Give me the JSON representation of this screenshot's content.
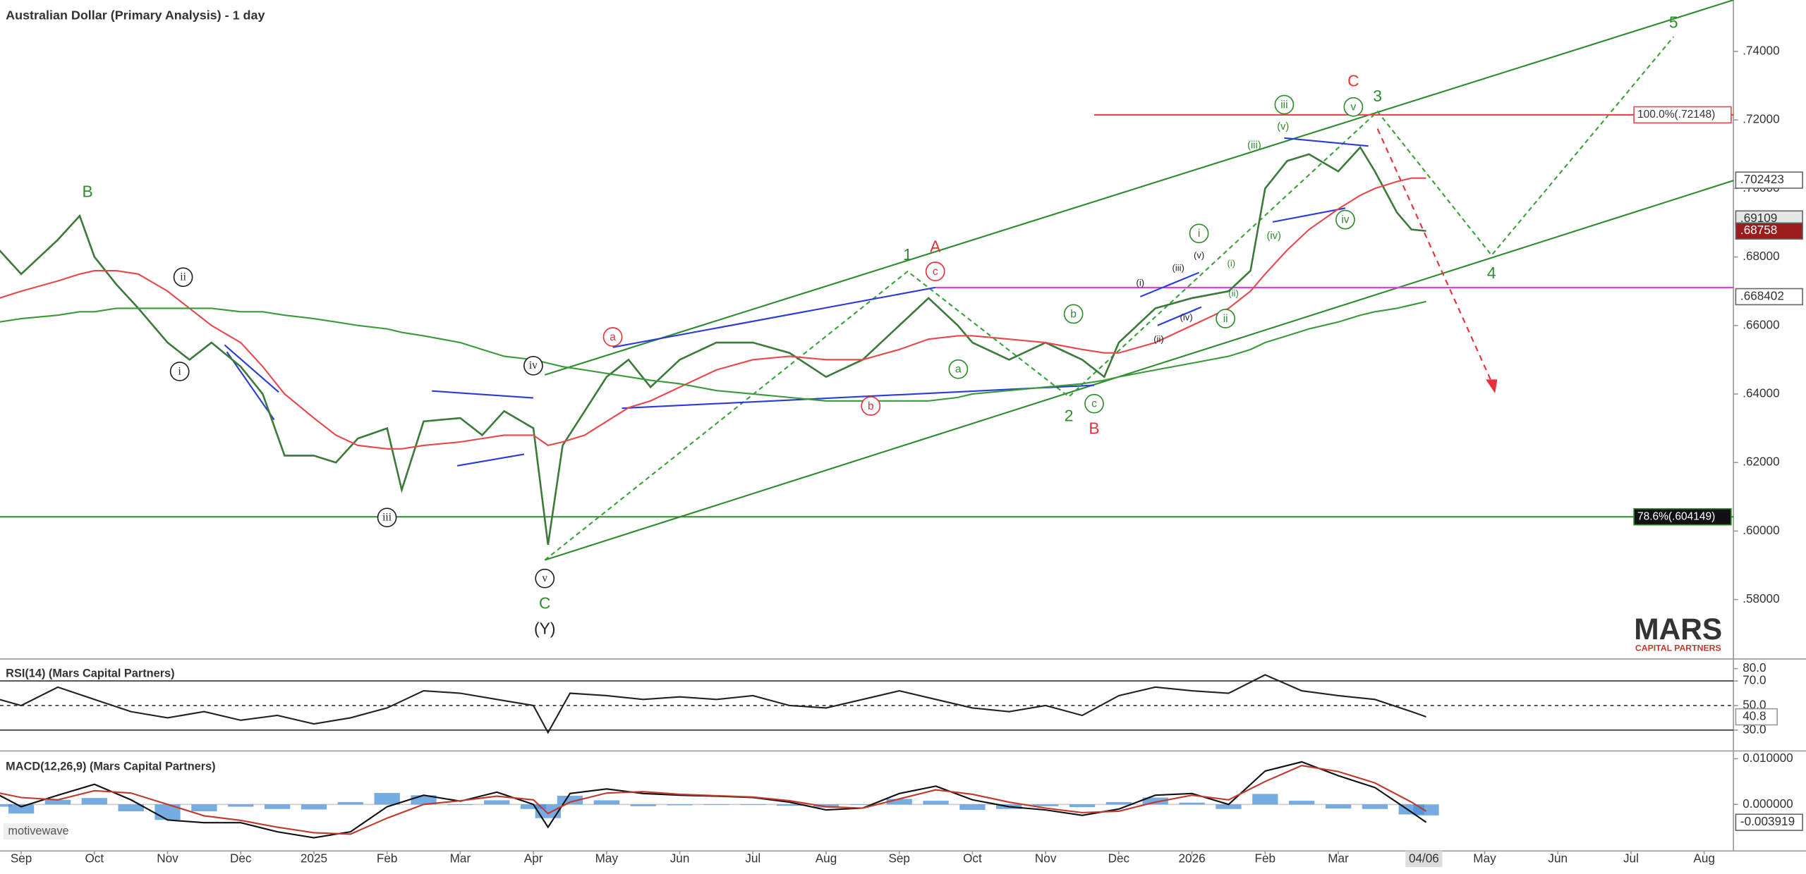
{
  "chart_data": [
    {
      "type": "line",
      "title": "Australian Dollar (Primary Analysis) - 1 day",
      "xlim": [
        -0.29,
        23.4
      ],
      "xticks": [
        {
          "value": 0,
          "label": "Sep"
        },
        {
          "value": 1,
          "label": "Oct"
        },
        {
          "value": 2,
          "label": "Nov"
        },
        {
          "value": 3,
          "label": "Dec"
        },
        {
          "value": 4,
          "label": "2025"
        },
        {
          "value": 5,
          "label": "Feb"
        },
        {
          "value": 6,
          "label": "Mar"
        },
        {
          "value": 7,
          "label": "Apr"
        },
        {
          "value": 8,
          "label": "May"
        },
        {
          "value": 9,
          "label": "Jun"
        },
        {
          "value": 10,
          "label": "Jul"
        },
        {
          "value": 11,
          "label": "Aug"
        },
        {
          "value": 12,
          "label": "Sep"
        },
        {
          "value": 13,
          "label": "Oct"
        },
        {
          "value": 14,
          "label": "Nov"
        },
        {
          "value": 15,
          "label": "Dec"
        },
        {
          "value": 16,
          "label": "2026"
        },
        {
          "value": 17,
          "label": "Feb"
        },
        {
          "value": 18,
          "label": "Mar"
        },
        {
          "value": 19.17,
          "label": "04/06"
        },
        {
          "value": 20,
          "label": "May"
        },
        {
          "value": 21,
          "label": "Jun"
        },
        {
          "value": 22,
          "label": "Jul"
        },
        {
          "value": 23,
          "label": "Aug"
        }
      ],
      "ylim": [
        0.563,
        0.755
      ],
      "yticks": [
        {
          "value": 0.58,
          "label": ".58000"
        },
        {
          "value": 0.6,
          "label": ".60000"
        },
        {
          "value": 0.62,
          "label": ".62000"
        },
        {
          "value": 0.64,
          "label": ".64000"
        },
        {
          "value": 0.66,
          "label": ".66000"
        },
        {
          "value": 0.68,
          "label": ".68000"
        },
        {
          "value": 0.7,
          "label": ".70000"
        },
        {
          "value": 0.72,
          "label": ".72000"
        },
        {
          "value": 0.74,
          "label": ".74000"
        }
      ],
      "x": [
        -0.3,
        0,
        0.5,
        0.8,
        1,
        1.3,
        1.6,
        2,
        2.3,
        2.6,
        3,
        3.3,
        3.6,
        4,
        4.3,
        4.6,
        5,
        5.2,
        5.5,
        6,
        6.3,
        6.6,
        7,
        7.2,
        7.4,
        7.7,
        8,
        8.3,
        8.6,
        9,
        9.5,
        10,
        10.5,
        11,
        11.5,
        12,
        12.4,
        12.8,
        13,
        13.5,
        14,
        14.5,
        14.8,
        15,
        15.5,
        16,
        16.5,
        16.8,
        17,
        17.3,
        17.6,
        18,
        18.3,
        18.5,
        18.8,
        19,
        19.2
      ],
      "series": [
        {
          "color": "#3b7a3b",
          "values": [
            0.682,
            0.675,
            0.685,
            0.692,
            0.68,
            0.672,
            0.665,
            0.655,
            0.65,
            0.655,
            0.648,
            0.64,
            0.622,
            0.622,
            0.62,
            0.627,
            0.63,
            0.612,
            0.632,
            0.633,
            0.628,
            0.635,
            0.63,
            0.596,
            0.625,
            0.635,
            0.645,
            0.65,
            0.642,
            0.65,
            0.655,
            0.655,
            0.652,
            0.645,
            0.65,
            0.66,
            0.668,
            0.66,
            0.655,
            0.65,
            0.655,
            0.65,
            0.645,
            0.655,
            0.665,
            0.668,
            0.67,
            0.676,
            0.7,
            0.708,
            0.71,
            0.705,
            0.712,
            0.705,
            0.693,
            0.688,
            0.6876
          ]
        },
        {
          "color": "#e8474b",
          "values": [
            0.668,
            0.67,
            0.673,
            0.675,
            0.676,
            0.676,
            0.675,
            0.67,
            0.665,
            0.66,
            0.655,
            0.648,
            0.64,
            0.633,
            0.628,
            0.625,
            0.624,
            0.624,
            0.625,
            0.626,
            0.627,
            0.628,
            0.628,
            0.625,
            0.626,
            0.628,
            0.632,
            0.636,
            0.638,
            0.642,
            0.647,
            0.65,
            0.651,
            0.65,
            0.65,
            0.653,
            0.656,
            0.657,
            0.657,
            0.656,
            0.655,
            0.653,
            0.652,
            0.652,
            0.655,
            0.66,
            0.665,
            0.67,
            0.675,
            0.682,
            0.688,
            0.694,
            0.698,
            0.7,
            0.702,
            0.703,
            0.703
          ]
        },
        {
          "color": "#3a9a3a",
          "values": [
            0.661,
            0.662,
            0.663,
            0.664,
            0.664,
            0.665,
            0.665,
            0.665,
            0.665,
            0.665,
            0.664,
            0.664,
            0.663,
            0.662,
            0.661,
            0.66,
            0.659,
            0.658,
            0.657,
            0.655,
            0.653,
            0.651,
            0.65,
            0.649,
            0.648,
            0.647,
            0.646,
            0.645,
            0.644,
            0.643,
            0.641,
            0.64,
            0.639,
            0.638,
            0.638,
            0.638,
            0.638,
            0.639,
            0.64,
            0.641,
            0.642,
            0.643,
            0.644,
            0.645,
            0.647,
            0.649,
            0.651,
            0.653,
            0.655,
            0.657,
            0.659,
            0.661,
            0.663,
            0.664,
            0.665,
            0.666,
            0.667
          ]
        }
      ],
      "levels": [
        {
          "value": 0.72148,
          "label": "100.0%(.72148)",
          "color": "#e8474b"
        },
        {
          "value": 0.604149,
          "label": "78.6%(.604149)",
          "color": "#2e8b2e"
        }
      ],
      "price_tags": [
        {
          "value": 0.702423,
          "label": ".702423"
        },
        {
          "value": 0.69109,
          "label": ".69109"
        },
        {
          "value": 0.68758,
          "label": ".68758"
        },
        {
          "value": 0.668402,
          "label": ".668402"
        }
      ],
      "annotations": [
        "B",
        "ii",
        "i",
        "iii",
        "iv",
        "v",
        "C",
        "(Y)",
        "a",
        "A",
        "c",
        "1",
        "b",
        "a",
        "b",
        "c",
        "2",
        "B",
        "(i)",
        "(ii)",
        "(iii)",
        "(iv)",
        "(v)",
        "i",
        "(i)",
        "(ii)",
        "ii",
        "(iii)",
        "iii",
        "(v)",
        "(iv)",
        "iv",
        "v",
        "C",
        "3",
        "4",
        "5"
      ]
    },
    {
      "type": "line",
      "title": "RSI(14) (Mars Capital Partners)",
      "xlim": [
        -0.29,
        23.4
      ],
      "ylim": [
        14,
        86
      ],
      "yticks": [
        {
          "value": 80,
          "label": "80.0"
        },
        {
          "value": 70,
          "label": "70.0"
        },
        {
          "value": 50,
          "label": "50.0"
        },
        {
          "value": 30,
          "label": "30.0"
        }
      ],
      "x": [
        -0.3,
        0,
        0.5,
        1,
        1.5,
        2,
        2.5,
        3,
        3.5,
        4,
        4.5,
        5,
        5.5,
        6,
        6.5,
        7,
        7.2,
        7.5,
        8,
        8.5,
        9,
        9.5,
        10,
        10.5,
        11,
        11.5,
        12,
        12.5,
        13,
        13.5,
        14,
        14.5,
        15,
        15.5,
        16,
        16.5,
        17,
        17.5,
        18,
        18.5,
        19,
        19.2
      ],
      "series": [
        {
          "color": "#222222",
          "values": [
            55,
            50,
            65,
            55,
            45,
            40,
            45,
            38,
            42,
            35,
            40,
            48,
            62,
            60,
            55,
            50,
            28,
            60,
            58,
            55,
            57,
            55,
            58,
            50,
            48,
            55,
            62,
            55,
            48,
            45,
            50,
            42,
            58,
            65,
            62,
            60,
            75,
            62,
            58,
            55,
            45,
            40.8
          ]
        }
      ]
    },
    {
      "type": "line",
      "title": "MACD(12,26,9) (Mars Capital Partners)",
      "xlim": [
        -0.29,
        23.4
      ],
      "ylim": [
        -0.0102,
        0.0112
      ],
      "yticks": [
        {
          "value": 0.01,
          "label": "0.010000"
        },
        {
          "value": 0,
          "label": "0.000000"
        }
      ],
      "x": [
        -0.3,
        0,
        0.5,
        1,
        1.5,
        2,
        2.5,
        3,
        3.5,
        4,
        4.5,
        5,
        5.5,
        6,
        6.5,
        7,
        7.2,
        7.5,
        8,
        8.5,
        9,
        9.5,
        10,
        10.5,
        11,
        11.5,
        12,
        12.5,
        13,
        13.5,
        14,
        14.5,
        15,
        15.5,
        16,
        16.5,
        17,
        17.5,
        18,
        18.5,
        19,
        19.2
      ],
      "histogram": {
        "color": "#4a90d9",
        "values": [
          -0.0005,
          -0.002,
          0.001,
          0.0014,
          -0.0015,
          -0.0034,
          -0.0015,
          -0.0005,
          -0.001,
          -0.0011,
          0.0005,
          0.0025,
          0.002,
          -0.0001,
          0.0009,
          -0.001,
          -0.003,
          0.0019,
          0.0009,
          -0.0004,
          -0.0002,
          -0.0001,
          -0.0001,
          -0.0003,
          -0.0007,
          0,
          0.0012,
          0.0008,
          -0.0012,
          -0.001,
          -0.0004,
          -0.0006,
          0.0005,
          0.0015,
          0.0004,
          -0.001,
          0.0023,
          0.0008,
          -0.0009,
          -0.001,
          -0.0022,
          -0.0024
        ]
      },
      "series": [
        {
          "color": "#111111",
          "values": [
            0.002,
            -0.0005,
            0.002,
            0.0044,
            0.001,
            -0.0034,
            -0.004,
            -0.004,
            -0.006,
            -0.0073,
            -0.006,
            -0.0005,
            0.002,
            0.0007,
            0.0027,
            0,
            -0.005,
            0.0024,
            0.0034,
            0.0024,
            0.002,
            0.0018,
            0.0015,
            0.0005,
            -0.0012,
            -0.0008,
            0.0024,
            0.004,
            0.001,
            -0.0005,
            -0.0012,
            -0.0024,
            -0.001,
            0.002,
            0.0024,
            0,
            0.0073,
            0.0093,
            0.0063,
            0.0037,
            -0.0017,
            -0.0039
          ]
        },
        {
          "color": "#c0392b",
          "values": [
            0.0025,
            0.0015,
            0.001,
            0.003,
            0.0025,
            0,
            -0.0025,
            -0.0035,
            -0.005,
            -0.0062,
            -0.0065,
            -0.003,
            0,
            0.0008,
            0.0018,
            0.001,
            -0.002,
            0.0005,
            0.0025,
            0.0028,
            0.0022,
            0.0019,
            0.0016,
            0.0008,
            -0.0005,
            -0.0008,
            0.0012,
            0.0032,
            0.0022,
            0.0005,
            -0.0008,
            -0.0018,
            -0.0015,
            0.0005,
            0.002,
            0.001,
            0.005,
            0.0085,
            0.0072,
            0.0047,
            0.0005,
            -0.0015
          ]
        }
      ],
      "price_tags": [
        {
          "value": -0.003919,
          "label": "-0.003919"
        }
      ]
    }
  ],
  "logo": {
    "name": "MARS",
    "tagline": "CAPITAL PARTNERS"
  },
  "watermark": "motivewave"
}
